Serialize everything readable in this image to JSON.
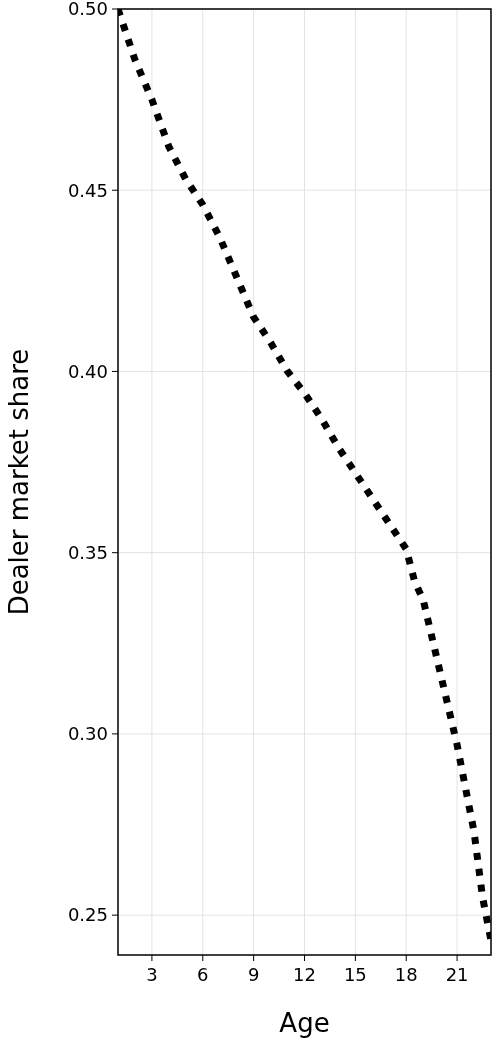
{
  "chart_data": {
    "type": "line",
    "xlabel": "Age",
    "ylabel": "Dealer market share",
    "x": [
      1,
      2,
      3,
      4,
      5,
      6,
      7,
      8,
      9,
      10,
      11,
      12,
      13,
      14,
      15,
      16,
      17,
      18,
      18.5,
      19,
      20,
      21,
      22,
      22.5,
      23
    ],
    "series": [
      {
        "color": "#000000",
        "values": [
          0.5,
          0.486,
          0.475,
          0.462,
          0.453,
          0.446,
          0.437,
          0.426,
          0.415,
          0.408,
          0.4,
          0.394,
          0.387,
          0.379,
          0.372,
          0.365,
          0.358,
          0.351,
          0.342,
          0.337,
          0.317,
          0.297,
          0.273,
          0.255,
          0.243
        ]
      }
    ],
    "xlim": [
      1,
      23
    ],
    "ylim": [
      0.239,
      0.5
    ],
    "xticks": [
      3,
      6,
      9,
      12,
      15,
      18,
      21
    ],
    "yticks": [
      {
        "value": 0.25,
        "label": "0.25"
      },
      {
        "value": 0.3,
        "label": "0.30"
      },
      {
        "value": 0.35,
        "label": "0.35"
      },
      {
        "value": 0.4,
        "label": "0.40"
      },
      {
        "value": 0.45,
        "label": "0.45"
      },
      {
        "value": 0.5,
        "label": "0.50"
      }
    ],
    "grid": true,
    "line_style": "dotted",
    "marker": "none"
  }
}
